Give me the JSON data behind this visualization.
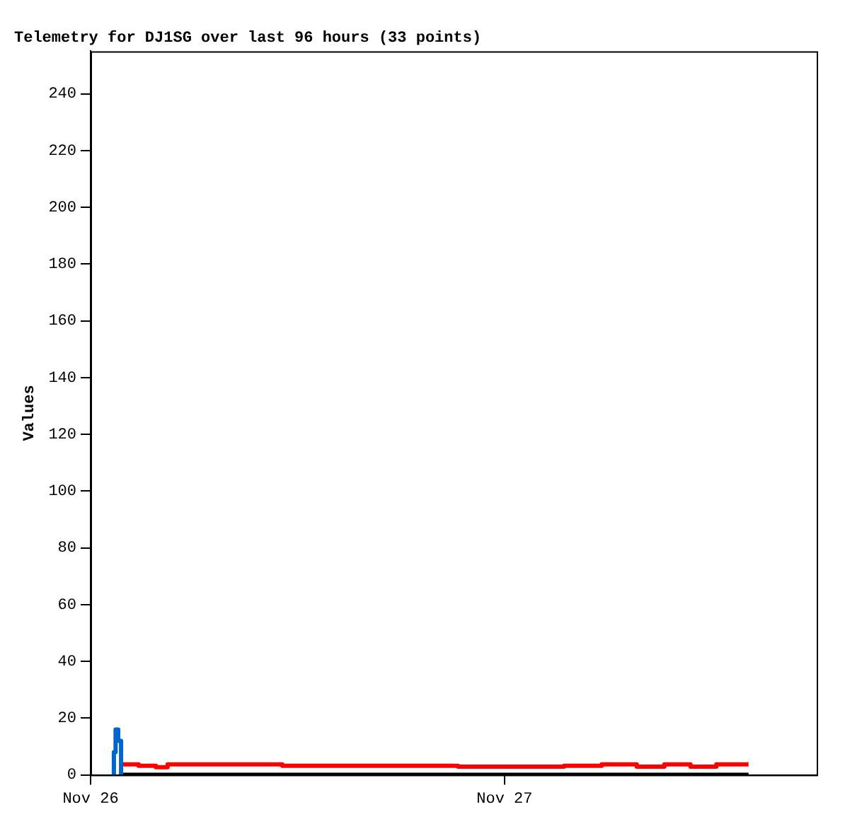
{
  "chart_data": {
    "type": "step",
    "title": "Telemetry for DJ1SG over last 96 hours (33 points)",
    "ylabel": "Values",
    "xlim": [
      "--11-26T00:00",
      "--11-27T18:06"
    ],
    "xticks": [
      {
        "value": "--11-26",
        "label": "Nov 26"
      },
      {
        "value": "--11-27",
        "label": "Nov 27"
      }
    ],
    "ylim": [
      0,
      255
    ],
    "yticks": [
      0,
      20,
      40,
      60,
      80,
      100,
      120,
      140,
      160,
      180,
      200,
      220,
      240
    ],
    "grid": false,
    "legend": false,
    "marker": "none",
    "line_style": "solid",
    "series": [
      {
        "color": "#0066cc",
        "x": [
          "--11-26T01:16",
          "--11-26T01:21",
          "--11-26T01:27",
          "--11-26T01:36",
          "--11-26T01:46"
        ],
        "values": [
          0,
          8,
          16,
          12,
          0
        ]
      },
      {
        "color": "#000000",
        "x": [
          "--11-26T01:41",
          "--11-27T14:09"
        ],
        "values": [
          0,
          0
        ]
      },
      {
        "color": "#ff0000",
        "x": [
          "--11-26T01:41",
          "--11-26T02:47",
          "--11-26T03:47",
          "--11-26T04:28",
          "--11-26T11:07",
          "--11-26T21:18",
          "--11-27T03:27",
          "--11-27T05:38",
          "--11-27T07:40",
          "--11-27T09:16",
          "--11-27T10:47",
          "--11-27T12:17",
          "--11-27T14:09"
        ],
        "values": [
          3.7,
          3.2,
          2.7,
          3.7,
          3.2,
          2.9,
          3.2,
          3.7,
          2.9,
          3.7,
          2.9,
          3.7,
          3.7
        ]
      }
    ]
  }
}
